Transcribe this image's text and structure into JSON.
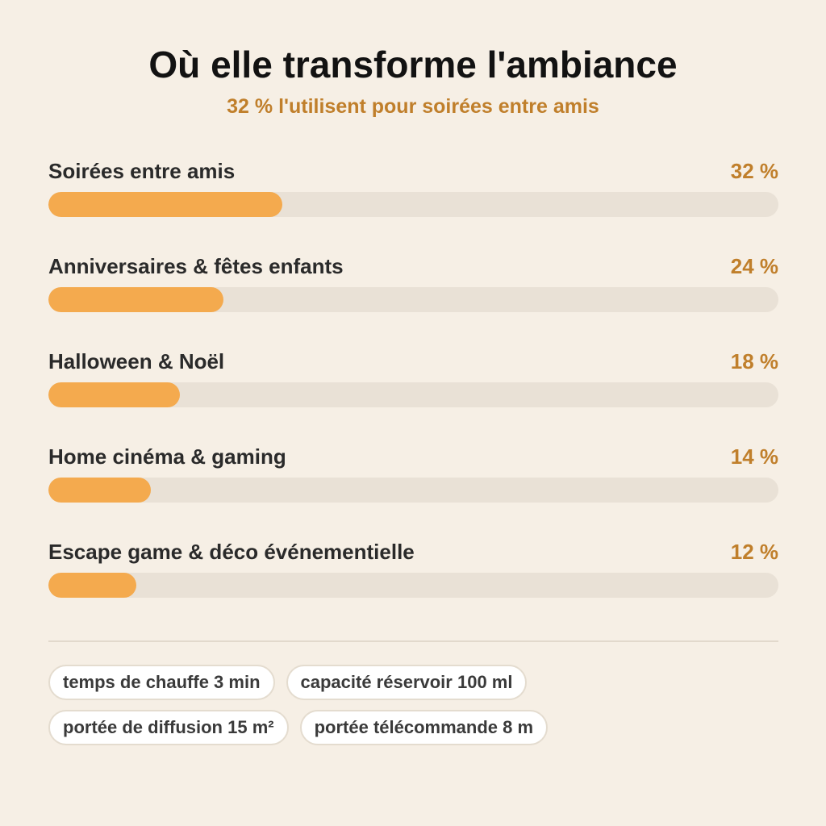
{
  "title": "Où elle transforme l'ambiance",
  "subtitle": "32 % l'utilisent pour soirées entre amis",
  "colors": {
    "background": "#f6efe5",
    "bar": "#f4aa4e",
    "track": "#e9e1d6",
    "accent": "#c07f2b"
  },
  "chart_data": {
    "type": "bar",
    "orientation": "horizontal",
    "title": "Où elle transforme l'ambiance",
    "subtitle": "32 % l'utilisent pour soirées entre amis",
    "categories": [
      "Soirées entre amis",
      "Anniversaires & fêtes enfants",
      "Halloween & Noël",
      "Home cinéma & gaming",
      "Escape game & déco événementielle"
    ],
    "values": [
      32,
      24,
      18,
      14,
      12
    ],
    "value_labels": [
      "32 %",
      "24 %",
      "18 %",
      "14 %",
      "12 %"
    ],
    "xlim": [
      0,
      100
    ],
    "unit": "%",
    "grid": false
  },
  "specs": [
    "temps de chauffe 3 min",
    "capacité réservoir 100 ml",
    "portée de diffusion 15 m²",
    "portée télécommande 8 m"
  ]
}
